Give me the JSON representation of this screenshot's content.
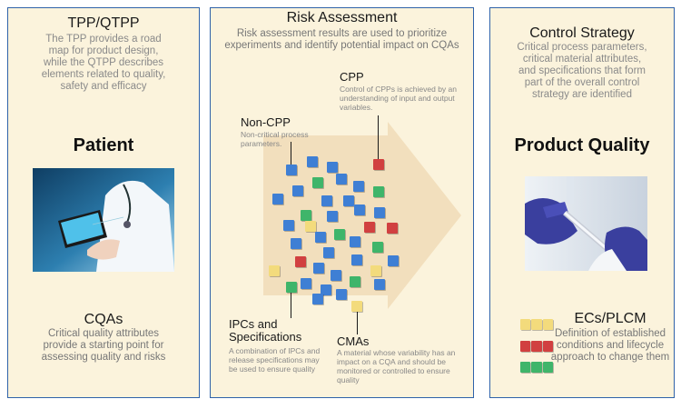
{
  "left": {
    "heading": "TPP/QTPP",
    "desc": "The TPP provides a road map for product design, while the QTPP describes elements related to quality, safety and efficacy",
    "big_label": "Patient",
    "photo_alt": "doctor with tablet and stethoscope",
    "bottom_heading": "CQAs",
    "bottom_desc": "Critical quality attributes provide a starting point for assessing quality and risks"
  },
  "middle": {
    "heading": "Risk Assessment",
    "desc": "Risk assessment results are used to prioritize experiments and identify potential impact on CQAs",
    "cpp_label": "CPP",
    "cpp_desc": "Control of CPPs is achieved by an understanding of input and output variables.",
    "noncpp_label": "Non-CPP",
    "noncpp_desc": "Non-critical process parameters.",
    "ipc_label": "IPCs and Specifications",
    "ipc_desc": "A combination of IPCs and release specifications may be used to ensure quality",
    "cma_label": "CMAs",
    "cma_desc": "A material whose variability has an impact on a CQA and should be monitored or controlled to ensure quality"
  },
  "right": {
    "heading": "Control Strategy",
    "desc": "Critical process parameters, critical material attributes, and specifications that form part of the overall control strategy are identified",
    "big_label": "Product Quality",
    "photo_alt": "gloved hands filling a syringe",
    "bottom_heading": "ECs/PLCM",
    "bottom_desc": "Definition of established conditions and lifecycle approach to change them"
  },
  "colors": {
    "border": "#2f62a9",
    "panel_bg": "#fbf3dc",
    "cube_blue": "#3f7fd4",
    "cube_green": "#3fb56a",
    "cube_red": "#d14040",
    "cube_yellow": "#f3db7c",
    "arrow": "#f2dfbd"
  }
}
